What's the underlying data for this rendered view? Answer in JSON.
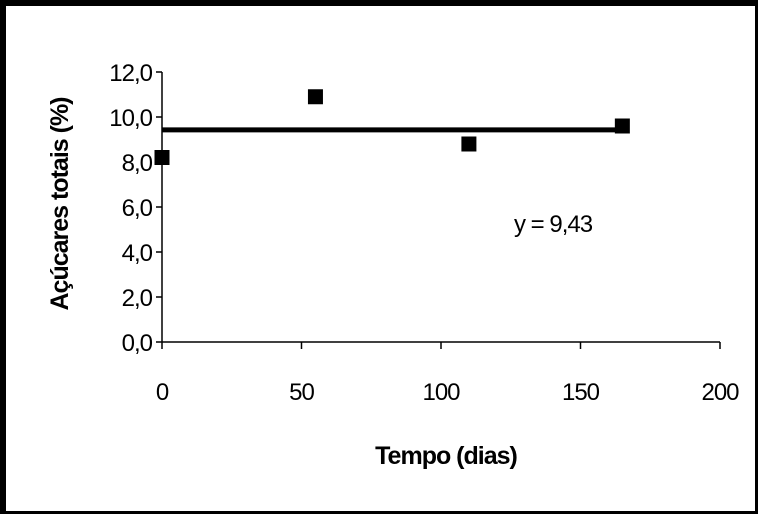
{
  "chart_data": {
    "type": "scatter",
    "xlabel": "Tempo (dias)",
    "ylabel": "Açúcares totais (%)",
    "xlim": [
      0,
      200
    ],
    "ylim": [
      0,
      12
    ],
    "x_ticks": [
      0,
      50,
      100,
      150,
      200
    ],
    "x_tick_labels": [
      "0",
      "50",
      "100",
      "150",
      "200"
    ],
    "y_ticks": [
      0,
      2,
      4,
      6,
      8,
      10,
      12
    ],
    "y_tick_labels": [
      "0,0",
      "2,0",
      "4,0",
      "6,0",
      "8,0",
      "10,0",
      "12,0"
    ],
    "grid": false,
    "series": [
      {
        "marker": "square",
        "color": "#000000",
        "x": [
          0,
          55,
          110,
          165
        ],
        "y": [
          8.2,
          10.9,
          8.8,
          9.6
        ]
      }
    ],
    "trendline": {
      "type": "horizontal",
      "y": 9.43,
      "x_range": [
        0,
        165
      ]
    },
    "annotations": [
      {
        "text": "y = 9,43"
      }
    ]
  }
}
